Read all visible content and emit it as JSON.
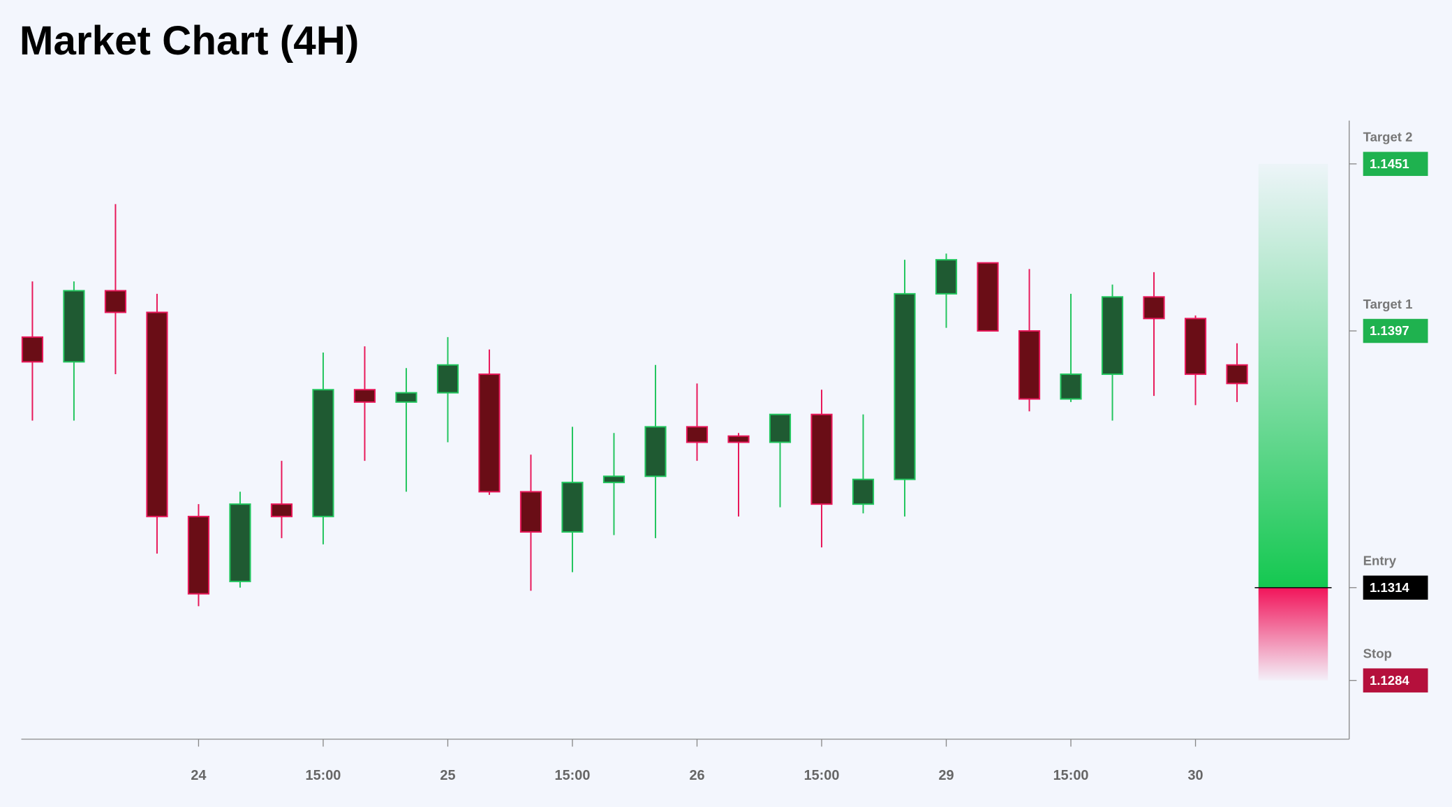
{
  "chart_data": {
    "type": "candlestick",
    "title": "Market Chart (4H)",
    "categories": [
      null,
      null,
      null,
      null,
      "24",
      null,
      null,
      "15:00",
      null,
      null,
      "25",
      null,
      null,
      "15:00",
      null,
      null,
      "26",
      null,
      null,
      "15:00",
      null,
      null,
      "29",
      null,
      null,
      "15:00",
      null,
      null,
      "30",
      null
    ],
    "open": [
      1.1395,
      1.1387,
      1.141,
      1.1403,
      1.1337,
      1.1316,
      1.1341,
      1.1337,
      1.1378,
      1.1374,
      1.1377,
      1.1383,
      1.1345,
      1.1332,
      1.1348,
      1.135,
      1.1366,
      1.1363,
      1.1361,
      1.137,
      1.1341,
      1.1349,
      1.1409,
      1.1419,
      1.1397,
      1.1375,
      1.1383,
      1.1408,
      1.1401,
      1.1386
    ],
    "high": [
      1.1413,
      1.1413,
      1.1438,
      1.1409,
      1.1341,
      1.1345,
      1.1355,
      1.139,
      1.1392,
      1.1385,
      1.1395,
      1.1391,
      1.1357,
      1.1366,
      1.1364,
      1.1386,
      1.138,
      1.1364,
      1.137,
      1.1378,
      1.137,
      1.142,
      1.1422,
      1.1419,
      1.1417,
      1.1409,
      1.1412,
      1.1416,
      1.1402,
      1.1393
    ],
    "low": [
      1.1368,
      1.1368,
      1.1383,
      1.1325,
      1.1308,
      1.1314,
      1.133,
      1.1328,
      1.1355,
      1.1345,
      1.1361,
      1.1344,
      1.1313,
      1.1319,
      1.1331,
      1.133,
      1.1355,
      1.1337,
      1.134,
      1.1327,
      1.1338,
      1.1337,
      1.1398,
      1.1397,
      1.1371,
      1.1374,
      1.1368,
      1.1376,
      1.1373,
      1.1374
    ],
    "close": [
      1.1387,
      1.141,
      1.1403,
      1.1337,
      1.1312,
      1.1341,
      1.1337,
      1.1378,
      1.1374,
      1.1377,
      1.1386,
      1.1345,
      1.1332,
      1.1348,
      1.135,
      1.1366,
      1.1361,
      1.1361,
      1.137,
      1.1341,
      1.1349,
      1.1409,
      1.142,
      1.1397,
      1.1375,
      1.1383,
      1.1408,
      1.1401,
      1.1383,
      1.138
    ],
    "up_color": "#22c55e",
    "up_fill": "#1f5a32",
    "down_color": "#e8185a",
    "down_fill": "#6a0d16",
    "ylim": [
      1.1265,
      1.1465
    ],
    "levels": [
      {
        "name": "Target 2",
        "value": 1.1451,
        "color": "#1fb24f"
      },
      {
        "name": "Target 1",
        "value": 1.1397,
        "color": "#1fb24f"
      },
      {
        "name": "Entry",
        "value": 1.1314,
        "color": "#000000"
      },
      {
        "name": "Stop",
        "value": 1.1284,
        "color": "#b5103c"
      }
    ]
  }
}
